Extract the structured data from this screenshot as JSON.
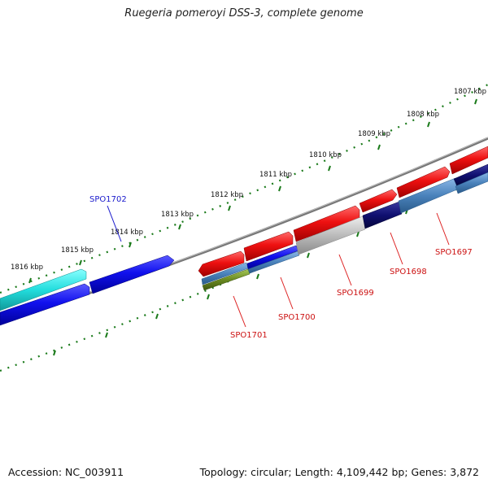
{
  "title": "Ruegeria pomeroyi DSS-3, complete genome",
  "footer": {
    "accession": "Accession: NC_003911",
    "stats": "Topology: circular; Length: 4,109,442 bp; Genes: 3,872"
  },
  "scale": {
    "unit": "kbp",
    "labels": [
      "1807 kbp",
      "1808 kbp",
      "1809 kbp",
      "1810 kbp",
      "1811 kbp",
      "1812 kbp",
      "1813 kbp",
      "1814 kbp",
      "1815 kbp",
      "1816 kbp"
    ]
  },
  "genes": [
    {
      "id": "SPO1697",
      "color": "#dd2222"
    },
    {
      "id": "SPO1698",
      "color": "#dd2222"
    },
    {
      "id": "SPO1699",
      "color": "#dd2222"
    },
    {
      "id": "SPO1700",
      "color": "#dd2222"
    },
    {
      "id": "SPO1701",
      "color": "#dd2222"
    },
    {
      "id": "SPO1702",
      "color": "#1a1acc"
    }
  ],
  "colors": {
    "forward_strand": "#ee1111",
    "reverse_strand": "#1111ee",
    "cyan_feature": "#22dddd",
    "navy_feature": "#101070",
    "steel_feature": "#4a82bb",
    "gray_feature": "#bbbbbb",
    "olive_feature": "#6a8a20",
    "backbone": "#888888",
    "tick": "#1a7a1a"
  }
}
